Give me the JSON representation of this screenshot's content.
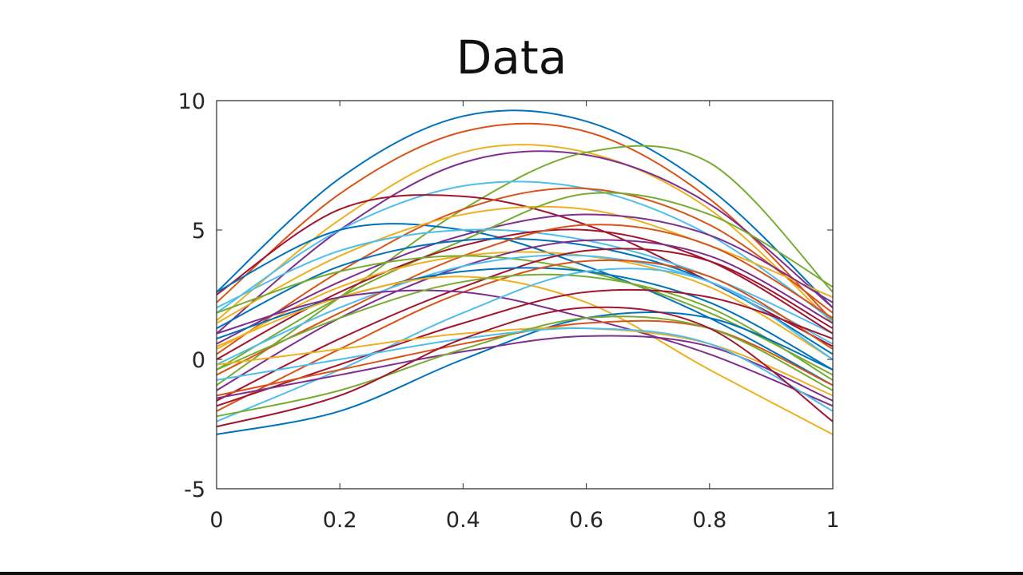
{
  "chart_data": {
    "type": "line",
    "title": "Data",
    "xlabel": "",
    "ylabel": "",
    "xlim": [
      0,
      1
    ],
    "ylim": [
      -5,
      10
    ],
    "grid": false,
    "x": [
      0,
      0.2,
      0.4,
      0.6,
      0.8,
      1
    ],
    "xticks": [
      0,
      0.2,
      0.4,
      0.6,
      0.8,
      1
    ],
    "xtick_labels": [
      "0",
      "0.2",
      "0.4",
      "0.6",
      "0.8",
      "1"
    ],
    "yticks": [
      -5,
      0,
      5,
      10
    ],
    "ytick_labels": [
      "-5",
      "0",
      "5",
      "10"
    ],
    "colors": [
      "#0072BD",
      "#D95319",
      "#EDB120",
      "#7E2F8E",
      "#77AC30",
      "#4DBEEE",
      "#A2142F"
    ],
    "series": [
      {
        "values": [
          2.6,
          7.0,
          9.4,
          9.2,
          6.6,
          2.0
        ]
      },
      {
        "values": [
          2.2,
          6.4,
          8.8,
          8.8,
          6.2,
          1.5
        ]
      },
      {
        "values": [
          1.5,
          5.4,
          8.0,
          8.0,
          5.8,
          1.4
        ]
      },
      {
        "values": [
          1.0,
          5.0,
          7.6,
          7.9,
          6.0,
          2.0
        ]
      },
      {
        "values": [
          -1.0,
          2.4,
          5.8,
          8.0,
          7.6,
          2.6
        ]
      },
      {
        "values": [
          1.8,
          5.0,
          6.7,
          6.6,
          4.8,
          1.5
        ]
      },
      {
        "values": [
          2.5,
          5.8,
          6.3,
          5.2,
          3.0,
          0.5
        ]
      },
      {
        "values": [
          2.6,
          5.0,
          5.0,
          3.6,
          1.6,
          -1.0
        ]
      },
      {
        "values": [
          0.2,
          3.4,
          5.8,
          6.6,
          5.2,
          1.8
        ]
      },
      {
        "values": [
          1.4,
          4.0,
          5.6,
          5.8,
          4.4,
          2.4
        ]
      },
      {
        "values": [
          0.6,
          3.0,
          4.8,
          5.6,
          4.8,
          2.2
        ]
      },
      {
        "values": [
          -0.4,
          2.4,
          4.6,
          6.4,
          5.6,
          2.8
        ]
      },
      {
        "values": [
          2.0,
          4.2,
          5.0,
          4.6,
          3.2,
          1.0
        ]
      },
      {
        "values": [
          0.0,
          2.6,
          4.4,
          5.0,
          3.8,
          1.0
        ]
      },
      {
        "values": [
          1.2,
          3.6,
          4.6,
          4.4,
          3.0,
          0.2
        ]
      },
      {
        "values": [
          -0.6,
          1.8,
          4.0,
          5.2,
          4.4,
          1.6
        ]
      },
      {
        "values": [
          0.4,
          2.8,
          4.0,
          4.0,
          2.8,
          0.0
        ]
      },
      {
        "values": [
          -1.2,
          1.6,
          3.6,
          4.6,
          4.0,
          1.4
        ]
      },
      {
        "values": [
          1.8,
          3.4,
          4.0,
          3.4,
          1.8,
          -0.6
        ]
      },
      {
        "values": [
          -0.2,
          2.0,
          3.6,
          4.0,
          3.0,
          0.6
        ]
      },
      {
        "values": [
          -1.6,
          0.8,
          2.8,
          4.2,
          3.8,
          1.2
        ]
      },
      {
        "values": [
          0.8,
          2.4,
          3.4,
          3.4,
          2.2,
          -0.4
        ]
      },
      {
        "values": [
          -2.0,
          0.4,
          2.6,
          3.8,
          3.2,
          0.4
        ]
      },
      {
        "values": [
          0.5,
          2.4,
          3.2,
          2.2,
          -0.4,
          -2.9
        ]
      },
      {
        "values": [
          1.0,
          2.4,
          2.6,
          1.6,
          0.2,
          -1.8
        ]
      },
      {
        "values": [
          -0.4,
          1.6,
          3.0,
          3.2,
          2.0,
          -0.8
        ]
      },
      {
        "values": [
          -2.4,
          -0.4,
          1.8,
          3.4,
          3.0,
          0.0
        ]
      },
      {
        "values": [
          -1.8,
          -0.2,
          1.4,
          2.6,
          2.4,
          0.8
        ]
      },
      {
        "values": [
          -2.9,
          -2.0,
          0.0,
          1.6,
          1.6,
          -0.4
        ]
      },
      {
        "values": [
          -1.4,
          -0.4,
          0.6,
          1.4,
          1.2,
          -1.0
        ]
      },
      {
        "values": [
          -0.2,
          0.4,
          1.0,
          1.2,
          0.6,
          -1.4
        ]
      },
      {
        "values": [
          -1.5,
          -0.6,
          0.3,
          0.9,
          0.5,
          -1.6
        ]
      },
      {
        "values": [
          -2.2,
          -1.2,
          0.4,
          1.6,
          1.2,
          -1.2
        ]
      },
      {
        "values": [
          -0.8,
          0.0,
          0.8,
          1.2,
          0.6,
          -2.0
        ]
      },
      {
        "values": [
          -2.6,
          -1.4,
          0.8,
          2.0,
          1.2,
          -2.4
        ]
      }
    ]
  }
}
